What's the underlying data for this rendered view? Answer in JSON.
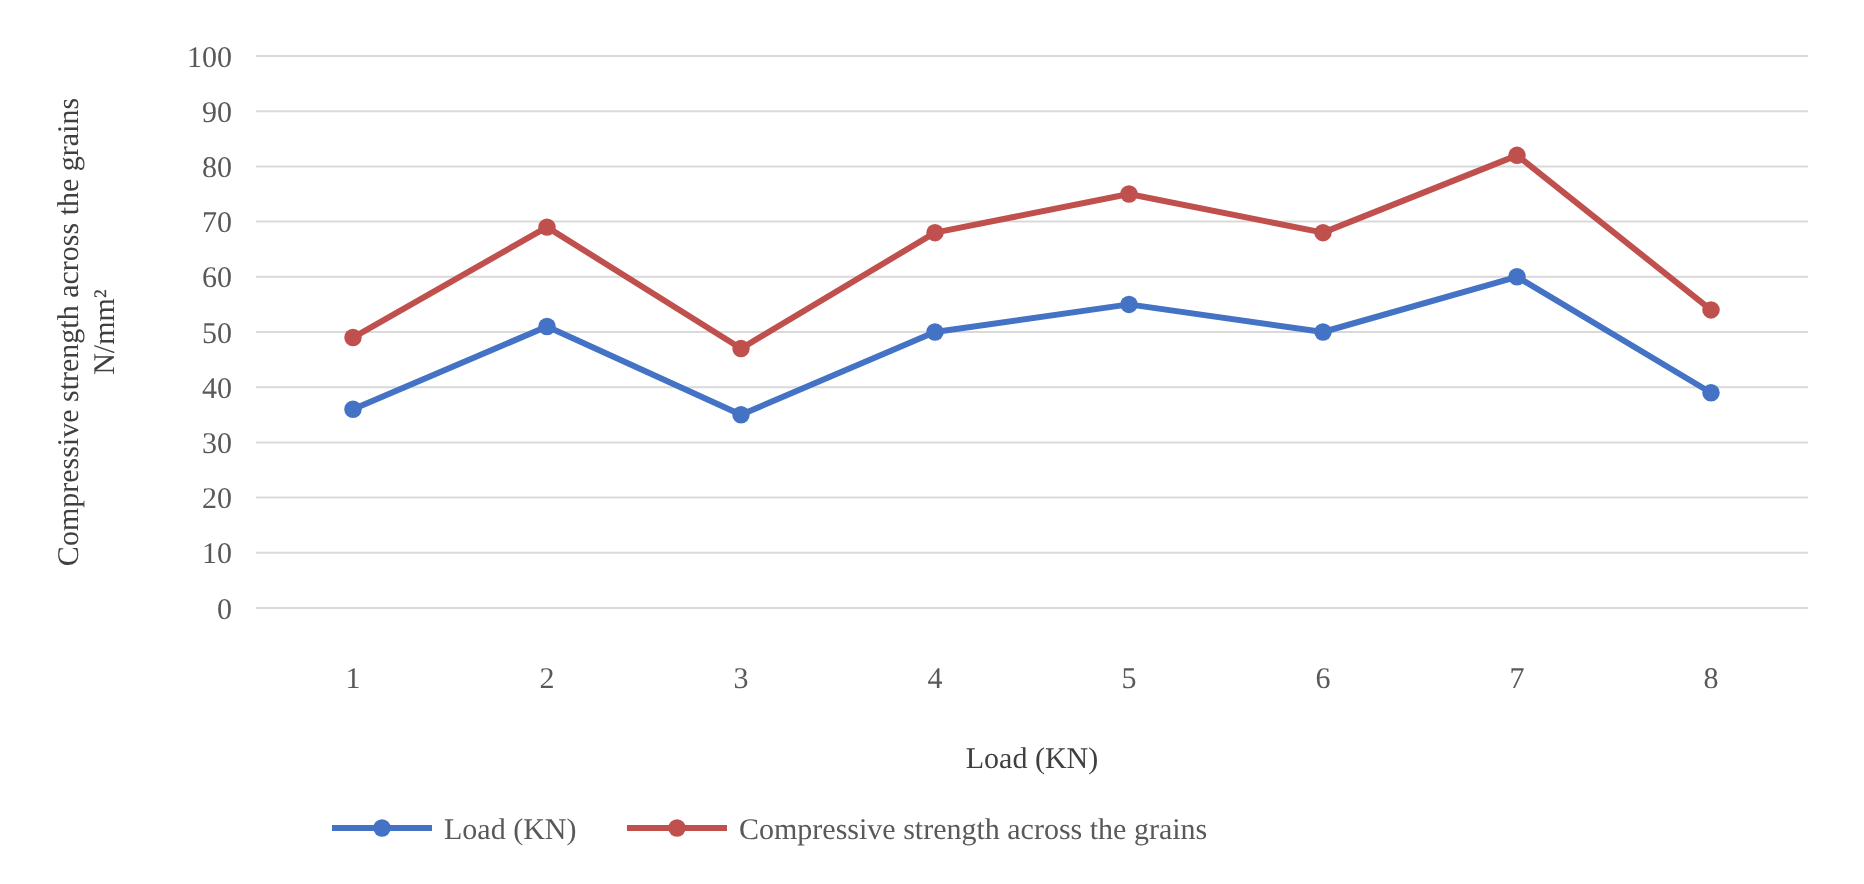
{
  "chart_data": {
    "type": "line",
    "xlabel": "Load (KN)",
    "ylabel": "Compressive strength across the grains N/mm²",
    "categories": [
      "1",
      "2",
      "3",
      "4",
      "5",
      "6",
      "7",
      "8"
    ],
    "series": [
      {
        "name": "Load (KN)",
        "color": "#4472c4",
        "values": [
          36,
          51,
          35,
          50,
          55,
          50,
          60,
          39
        ]
      },
      {
        "name": "Compressive strength across the grains",
        "color": "#c0504d",
        "values": [
          49,
          69,
          47,
          68,
          75,
          68,
          82,
          54
        ]
      }
    ],
    "ylim": [
      0,
      100
    ],
    "yticks": [
      0,
      10,
      20,
      30,
      40,
      50,
      60,
      70,
      80,
      90,
      100
    ],
    "grid": "y",
    "legend": "bottom",
    "marker": "circle",
    "line_style": "solid"
  }
}
